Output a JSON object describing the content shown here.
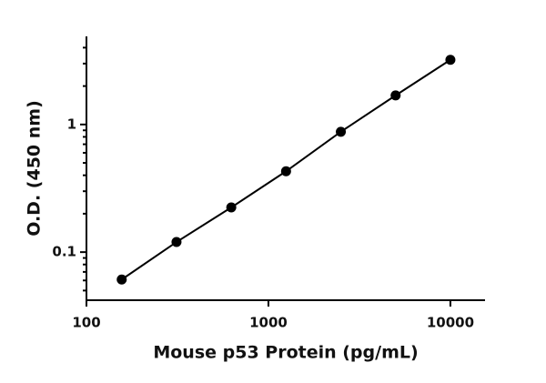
{
  "chart_data": {
    "type": "scatter",
    "x_label": "Mouse p53 Protein (pg/mL)",
    "y_label": "O.D. (450 nm)",
    "x_scale": "log",
    "y_scale": "log",
    "xlim": [
      100,
      15500
    ],
    "xticks": [
      100,
      1000,
      10000
    ],
    "ylim": [
      0.042,
      4.9
    ],
    "yticks": [
      0.1,
      1
    ],
    "yminorticks": [
      0.05,
      0.06,
      0.07,
      0.08,
      0.09,
      0.2,
      0.3,
      0.4,
      0.5,
      0.6,
      0.7,
      0.8,
      0.9,
      2,
      3,
      4
    ],
    "fit_line": true,
    "series": [
      {
        "color": "#000000",
        "x": [
          156.25,
          312.5,
          625,
          1250,
          2500,
          5000,
          10000
        ],
        "values": [
          0.061,
          0.12,
          0.224,
          0.43,
          0.877,
          1.69,
          3.21
        ]
      }
    ]
  }
}
